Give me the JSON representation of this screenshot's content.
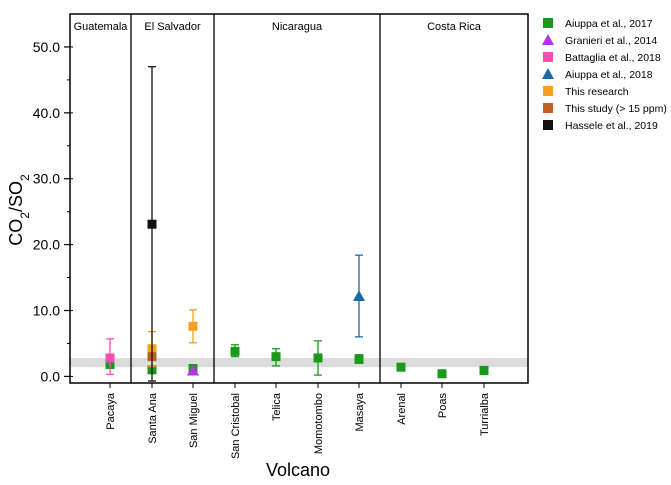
{
  "chart_data": {
    "type": "scatter",
    "xlabel": "Volcano",
    "ylabel": {
      "main": "CO",
      "sub1": "2",
      "slash": "/SO",
      "sub2": "2"
    },
    "ylim": [
      -1,
      55
    ],
    "yticks": [
      0,
      10,
      20,
      30,
      40,
      50
    ],
    "ytick_labels": [
      "0.0",
      "10.0",
      "20.0",
      "30.0",
      "40.0",
      "50.0"
    ],
    "categories": [
      "Pacaya",
      "Santa Ana",
      "San Miguel",
      "San Cristobal",
      "Telica",
      "Momotombo",
      "Masaya",
      "Arenal",
      "Poas",
      "Turrialba"
    ],
    "regions": [
      {
        "name": "Guatemala",
        "from": 0,
        "to": 0
      },
      {
        "name": "El Salvador",
        "from": 1,
        "to": 2
      },
      {
        "name": "Nicaragua",
        "from": 3,
        "to": 6
      },
      {
        "name": "Costa Rica",
        "from": 7,
        "to": 9
      }
    ],
    "background_band": [
      1.4,
      2.8
    ],
    "series": [
      {
        "name": "Aiuppa et al., 2017",
        "color": "#1a9a1a",
        "marker": "square",
        "points": [
          {
            "x": "Pacaya",
            "y": 1.8,
            "lo": 1.8,
            "hi": 1.8
          },
          {
            "x": "Santa Ana",
            "y": 1.0,
            "lo": 1.0,
            "hi": 1.0
          },
          {
            "x": "San Miguel",
            "y": 1.2,
            "lo": 1.2,
            "hi": 1.2
          },
          {
            "x": "San Cristobal",
            "y": 3.8,
            "lo": 3.0,
            "hi": 4.8
          },
          {
            "x": "Telica",
            "y": 3.0,
            "lo": 1.6,
            "hi": 4.2
          },
          {
            "x": "Momotombo",
            "y": 2.8,
            "lo": 0.2,
            "hi": 5.4
          },
          {
            "x": "Masaya",
            "y": 2.6,
            "lo": 2.0,
            "hi": 3.3
          },
          {
            "x": "Arenal",
            "y": 1.4,
            "lo": 1.0,
            "hi": 1.8
          },
          {
            "x": "Poas",
            "y": 0.4,
            "lo": 0.4,
            "hi": 0.4
          },
          {
            "x": "Turrialba",
            "y": 0.9,
            "lo": 0.3,
            "hi": 1.5
          }
        ]
      },
      {
        "name": "Granieri et al., 2014",
        "color": "#b535e0",
        "marker": "triangle",
        "points": [
          {
            "x": "San Miguel",
            "y": 0.9,
            "lo": 0.9,
            "hi": 0.9
          }
        ]
      },
      {
        "name": "Battaglia et al., 2018",
        "color": "#f050b0",
        "marker": "square",
        "points": [
          {
            "x": "Pacaya",
            "y": 2.8,
            "lo": 0.3,
            "hi": 5.7
          }
        ]
      },
      {
        "name": "Aiuppa et al., 2018",
        "color": "#1a6aaa",
        "marker": "triangle",
        "points": [
          {
            "x": "Masaya",
            "y": 12.2,
            "lo": 6.0,
            "hi": 18.4
          }
        ]
      },
      {
        "name": "This research",
        "color": "#f5a020",
        "marker": "square",
        "points": [
          {
            "x": "Santa Ana",
            "y": 4.2,
            "lo": 1.5,
            "hi": 6.8
          },
          {
            "x": "San Miguel",
            "y": 7.6,
            "lo": 5.1,
            "hi": 10.1
          }
        ]
      },
      {
        "name": "This study (> 15 ppm)",
        "color": "#c06020",
        "marker": "square",
        "points": [
          {
            "x": "Santa Ana",
            "y": 3.0,
            "lo": 3.0,
            "hi": 3.0
          }
        ]
      },
      {
        "name": "Hassele et al., 2019",
        "color": "#111111",
        "marker": "square",
        "points": [
          {
            "x": "Santa Ana",
            "y": 23.1,
            "lo": -0.7,
            "hi": 47.0
          }
        ]
      }
    ]
  }
}
